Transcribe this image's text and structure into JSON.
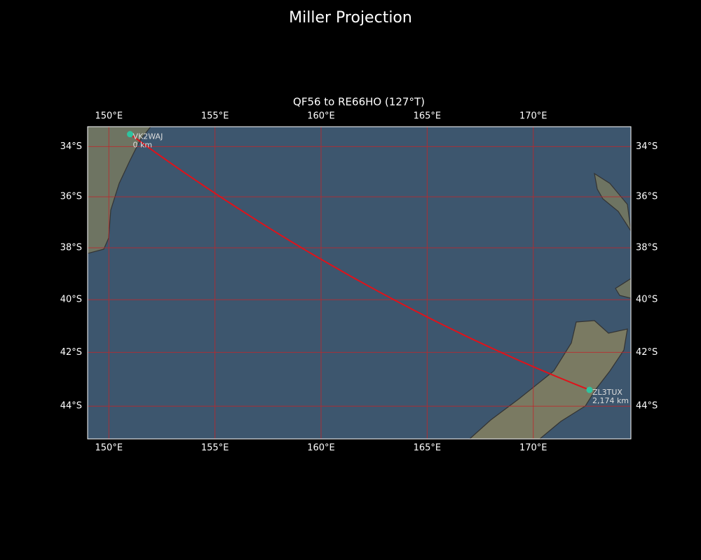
{
  "title": "Miller Projection",
  "map": {
    "subtitle": "QF56 to RE66HO (127°T)",
    "xlim": [
      149,
      174.6
    ],
    "ylim": [
      -45.2,
      -33.2
    ],
    "xticks": [
      {
        "value": 150,
        "label": "150°E"
      },
      {
        "value": 155,
        "label": "155°E"
      },
      {
        "value": 160,
        "label": "160°E"
      },
      {
        "value": 165,
        "label": "165°E"
      },
      {
        "value": 170,
        "label": "170°E"
      }
    ],
    "yticks": [
      {
        "value": -34,
        "label": "34°S"
      },
      {
        "value": -36,
        "label": "36°S"
      },
      {
        "value": -38,
        "label": "38°S"
      },
      {
        "value": -40,
        "label": "40°S"
      },
      {
        "value": -42,
        "label": "42°S"
      },
      {
        "value": -44,
        "label": "44°S"
      }
    ],
    "grid_color": "#c0262a",
    "path_color": "#e0121a",
    "marker_color": "#2ec4a0",
    "stations": [
      {
        "name": "VK2WAJ",
        "distance": "0 km",
        "lon": 151.0,
        "lat": -33.5
      },
      {
        "name": "ZL3TUX",
        "distance": "2,174 km",
        "lon": 172.65,
        "lat": -43.4
      }
    ]
  }
}
